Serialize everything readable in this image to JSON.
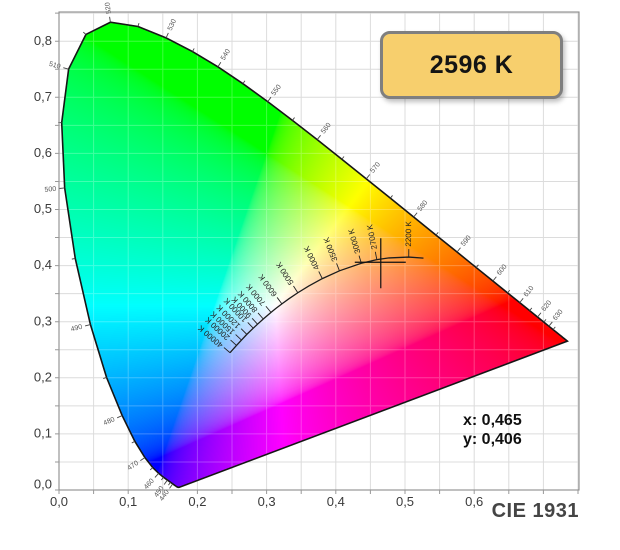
{
  "badge": {
    "label": "2596 K",
    "fill": "#f7cf6d",
    "border": "#7f7f7f",
    "text_color": "#141414"
  },
  "readout": {
    "x_line": "x: 0,465",
    "y_line": "y: 0,406"
  },
  "footer": {
    "label": "CIE 1931"
  },
  "chart_data": {
    "type": "cie-1931-chromaticity-diagram",
    "title": "2596 K",
    "standard": "CIE 1931",
    "marker": {
      "x": 0.465,
      "y": 0.406
    },
    "marker_readout": {
      "x_label": "x: 0,465",
      "y_label": "y: 0,406"
    },
    "cct_value_kelvin": 2596,
    "x_axis": {
      "range": [
        0,
        0.7514
      ],
      "grid_step": 0.05,
      "ticks": [
        {
          "v": 0.0,
          "label": "0,0"
        },
        {
          "v": 0.1,
          "label": "0,1"
        },
        {
          "v": 0.2,
          "label": "0,2"
        },
        {
          "v": 0.3,
          "label": "0,3"
        },
        {
          "v": 0.4,
          "label": "0,4"
        },
        {
          "v": 0.5,
          "label": "0,5"
        },
        {
          "v": 0.6,
          "label": "0,6"
        }
      ]
    },
    "y_axis": {
      "range": [
        0,
        0.852
      ],
      "grid_step": 0.05,
      "ticks": [
        {
          "v": 0.0,
          "label": "0,0"
        },
        {
          "v": 0.1,
          "label": "0,1"
        },
        {
          "v": 0.2,
          "label": "0,2"
        },
        {
          "v": 0.3,
          "label": "0,3"
        },
        {
          "v": 0.4,
          "label": "0,4"
        },
        {
          "v": 0.5,
          "label": "0,5"
        },
        {
          "v": 0.6,
          "label": "0,6"
        },
        {
          "v": 0.7,
          "label": "0,7"
        },
        {
          "v": 0.8,
          "label": "0,8"
        }
      ]
    },
    "grid_color": "#dcdcdc",
    "frame_color": "#8c8c8c",
    "axis_text_color": "#3b3b3b",
    "spectral_locus": [
      [
        380,
        0.1741,
        0.005
      ],
      [
        385,
        0.174,
        0.005
      ],
      [
        390,
        0.1738,
        0.0049
      ],
      [
        395,
        0.1736,
        0.0049
      ],
      [
        400,
        0.1733,
        0.0048
      ],
      [
        405,
        0.173,
        0.0048
      ],
      [
        410,
        0.1726,
        0.0048
      ],
      [
        415,
        0.1721,
        0.0048
      ],
      [
        420,
        0.1714,
        0.0051
      ],
      [
        425,
        0.1703,
        0.0058
      ],
      [
        430,
        0.1689,
        0.0069
      ],
      [
        435,
        0.1669,
        0.0086
      ],
      [
        440,
        0.1644,
        0.0109
      ],
      [
        445,
        0.1611,
        0.0138
      ],
      [
        450,
        0.1566,
        0.0177
      ],
      [
        455,
        0.151,
        0.0227
      ],
      [
        460,
        0.144,
        0.0297
      ],
      [
        465,
        0.1355,
        0.0399
      ],
      [
        470,
        0.1241,
        0.0578
      ],
      [
        475,
        0.1096,
        0.0868
      ],
      [
        480,
        0.0913,
        0.1327
      ],
      [
        485,
        0.0687,
        0.2007
      ],
      [
        490,
        0.0454,
        0.295
      ],
      [
        495,
        0.0235,
        0.4127
      ],
      [
        500,
        0.0082,
        0.5384
      ],
      [
        505,
        0.0039,
        0.6548
      ],
      [
        510,
        0.0139,
        0.7502
      ],
      [
        515,
        0.0389,
        0.812
      ],
      [
        520,
        0.0743,
        0.8338
      ],
      [
        525,
        0.1142,
        0.8262
      ],
      [
        530,
        0.1547,
        0.8059
      ],
      [
        535,
        0.1929,
        0.7816
      ],
      [
        540,
        0.2296,
        0.7543
      ],
      [
        545,
        0.2658,
        0.7243
      ],
      [
        550,
        0.3016,
        0.6923
      ],
      [
        555,
        0.3373,
        0.6589
      ],
      [
        560,
        0.3731,
        0.6245
      ],
      [
        565,
        0.4087,
        0.5896
      ],
      [
        570,
        0.4441,
        0.5547
      ],
      [
        575,
        0.4788,
        0.5202
      ],
      [
        580,
        0.5125,
        0.4866
      ],
      [
        585,
        0.5448,
        0.4544
      ],
      [
        590,
        0.5752,
        0.4242
      ],
      [
        595,
        0.6029,
        0.3965
      ],
      [
        600,
        0.627,
        0.3725
      ],
      [
        605,
        0.6482,
        0.3514
      ],
      [
        610,
        0.6658,
        0.334
      ],
      [
        615,
        0.6801,
        0.3197
      ],
      [
        620,
        0.6915,
        0.3083
      ],
      [
        625,
        0.7006,
        0.2993
      ],
      [
        630,
        0.7079,
        0.292
      ],
      [
        635,
        0.714,
        0.2859
      ],
      [
        640,
        0.719,
        0.2809
      ],
      [
        645,
        0.723,
        0.277
      ],
      [
        650,
        0.726,
        0.274
      ],
      [
        655,
        0.7283,
        0.2717
      ],
      [
        660,
        0.73,
        0.27
      ],
      [
        665,
        0.7311,
        0.2689
      ],
      [
        670,
        0.732,
        0.268
      ],
      [
        675,
        0.7327,
        0.2673
      ],
      [
        680,
        0.7334,
        0.2666
      ],
      [
        685,
        0.734,
        0.266
      ],
      [
        690,
        0.7344,
        0.2656
      ],
      [
        695,
        0.7346,
        0.2654
      ],
      [
        700,
        0.7347,
        0.2653
      ]
    ],
    "wavelength_labels": [
      440,
      450,
      460,
      470,
      480,
      490,
      500,
      510,
      520,
      530,
      540,
      550,
      560,
      570,
      580,
      590,
      600,
      610,
      620,
      630
    ],
    "planckian_locus": [
      [
        2000,
        0.5267,
        0.4133
      ],
      [
        2200,
        0.5054,
        0.4152
      ],
      [
        2500,
        0.477,
        0.4137
      ],
      [
        2700,
        0.4593,
        0.4106
      ],
      [
        3000,
        0.4369,
        0.4041
      ],
      [
        3500,
        0.4053,
        0.3907
      ],
      [
        4000,
        0.3805,
        0.3768
      ],
      [
        4500,
        0.3608,
        0.3636
      ],
      [
        5000,
        0.3451,
        0.3516
      ],
      [
        5500,
        0.3324,
        0.341
      ],
      [
        6000,
        0.3221,
        0.3318
      ],
      [
        6500,
        0.3135,
        0.3237
      ],
      [
        7000,
        0.3064,
        0.3166
      ],
      [
        8000,
        0.2952,
        0.3048
      ],
      [
        9000,
        0.2869,
        0.2956
      ],
      [
        10000,
        0.2807,
        0.2884
      ],
      [
        12000,
        0.2714,
        0.2774
      ],
      [
        15000,
        0.2637,
        0.2673
      ],
      [
        20000,
        0.2565,
        0.2577
      ],
      [
        25000,
        0.2528,
        0.2526
      ],
      [
        30000,
        0.2501,
        0.2489
      ],
      [
        40000,
        0.2472,
        0.2447
      ]
    ],
    "cct_tick_labels": [
      {
        "t": 2200,
        "label": "2200 K"
      },
      {
        "t": 2700,
        "label": "2700 K"
      },
      {
        "t": 3000,
        "label": "3000 K"
      },
      {
        "t": 3500,
        "label": "3500 K"
      },
      {
        "t": 4000,
        "label": "4000 K"
      },
      {
        "t": 5000,
        "label": "5000 K"
      },
      {
        "t": 6000,
        "label": "6000 K"
      },
      {
        "t": 7000,
        "label": "7000 K"
      },
      {
        "t": 8000,
        "label": "8000 K"
      },
      {
        "t": 9000,
        "label": "9000 K"
      },
      {
        "t": 10000,
        "label": "10000 K"
      },
      {
        "t": 12000,
        "label": "12000 K"
      },
      {
        "t": 15000,
        "label": "15000 K"
      },
      {
        "t": 20000,
        "label": "20000 K"
      },
      {
        "t": 40000,
        "label": "40000 K"
      }
    ]
  }
}
